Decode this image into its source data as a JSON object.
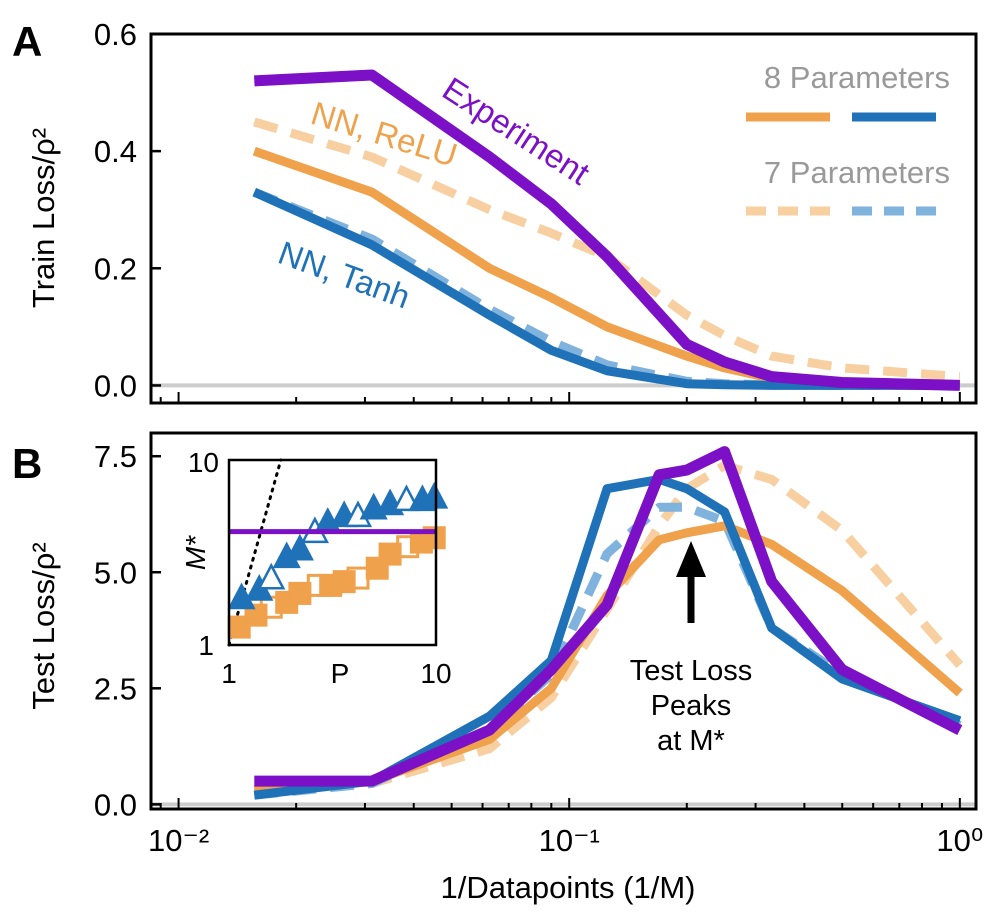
{
  "chart_data": [
    {
      "panel": "A",
      "type": "line",
      "ylabel": "Train Loss/ρ²",
      "xscale": "log",
      "xlim": [
        0.0085,
        1.1
      ],
      "ylim": [
        -0.03,
        0.6
      ],
      "yticks": [
        "0.0",
        "0.2",
        "0.4",
        "0.6"
      ],
      "x": [
        0.015625,
        0.03125,
        0.0625,
        0.09,
        0.125,
        0.2,
        0.25,
        0.33,
        0.5,
        1.0
      ],
      "series": [
        {
          "name": "Experiment",
          "color": "#7B10C6",
          "style": "solid",
          "values": [
            0.52,
            0.53,
            0.39,
            0.31,
            0.22,
            0.07,
            0.04,
            0.015,
            0.005,
            0.0
          ]
        },
        {
          "name": "NN, ReLU 8 Parameters",
          "color": "#F0A14B",
          "style": "solid",
          "values": [
            0.4,
            0.33,
            0.2,
            0.15,
            0.1,
            0.05,
            0.03,
            0.012,
            0.005,
            0.0
          ]
        },
        {
          "name": "NN, ReLU 7 Parameters",
          "color": "#F8CFA0",
          "style": "dashed",
          "values": [
            0.45,
            0.39,
            0.3,
            0.26,
            0.22,
            0.12,
            0.085,
            0.05,
            0.03,
            0.015
          ]
        },
        {
          "name": "NN, Tanh 8 Parameters",
          "color": "#1F72B8",
          "style": "solid",
          "values": [
            0.33,
            0.24,
            0.12,
            0.06,
            0.025,
            0.003,
            0.001,
            0.0,
            0.0,
            0.0
          ]
        },
        {
          "name": "NN, Tanh 7 Parameters",
          "color": "#7FB2DC",
          "style": "dashed",
          "values": [
            0.33,
            0.25,
            0.13,
            0.075,
            0.035,
            0.007,
            0.003,
            0.001,
            0.0,
            0.0
          ]
        }
      ],
      "curve_labels": {
        "experiment": "Experiment",
        "relu": "NN, ReLU",
        "tanh": "NN, Tanh"
      },
      "legend": {
        "title_8": "8 Parameters",
        "title_7": "7 Parameters",
        "placement": "top-right"
      }
    },
    {
      "panel": "B",
      "type": "line",
      "xlabel": "1/Datapoints (1/M)",
      "ylabel": "Test Loss/ρ²",
      "xscale": "log",
      "xlim": [
        0.0085,
        1.1
      ],
      "ylim": [
        -0.1,
        8.0
      ],
      "yticks": [
        "0.0",
        "2.5",
        "5.0",
        "7.5"
      ],
      "xticks": [
        "10⁻²",
        "10⁻¹",
        "10⁰"
      ],
      "x": [
        0.015625,
        0.03125,
        0.0625,
        0.09,
        0.125,
        0.17,
        0.2,
        0.25,
        0.33,
        0.5,
        1.0
      ],
      "series": [
        {
          "name": "Experiment",
          "color": "#7B10C6",
          "style": "solid",
          "values": [
            0.5,
            0.5,
            1.6,
            2.9,
            4.3,
            7.1,
            7.2,
            7.6,
            4.8,
            2.9,
            1.6
          ]
        },
        {
          "name": "NN, ReLU 8 Parameters",
          "color": "#F0A14B",
          "style": "solid",
          "values": [
            0.3,
            0.5,
            1.4,
            2.5,
            4.5,
            5.7,
            5.85,
            6.0,
            5.6,
            4.6,
            2.4
          ]
        },
        {
          "name": "NN, ReLU 7 Parameters",
          "color": "#F8CFA0",
          "style": "dashed",
          "values": [
            0.25,
            0.45,
            1.2,
            2.3,
            4.2,
            6.0,
            6.8,
            7.3,
            7.0,
            5.9,
            3.0
          ]
        },
        {
          "name": "NN, Tanh 8 Parameters",
          "color": "#1F72B8",
          "style": "solid",
          "values": [
            0.2,
            0.5,
            1.9,
            3.1,
            6.8,
            7.0,
            6.8,
            6.3,
            3.8,
            2.7,
            1.8
          ]
        },
        {
          "name": "NN, Tanh 7 Parameters",
          "color": "#7FB2DC",
          "style": "dashed",
          "values": [
            0.2,
            0.45,
            1.6,
            2.8,
            5.4,
            6.4,
            6.4,
            6.1,
            3.8,
            2.8,
            1.7
          ]
        }
      ],
      "annotation": {
        "line1": "Test Loss",
        "line2": "Peaks",
        "line3": "at M*"
      },
      "inset": {
        "type": "scatter",
        "xscale": "log",
        "yscale": "log",
        "xlim": [
          1,
          10
        ],
        "ylim": [
          1,
          10
        ],
        "xlabel": "P",
        "ylabel": "M*",
        "xticks": [
          "1",
          "10"
        ],
        "yticks": [
          "1",
          "10"
        ],
        "experiment_level": 4.1,
        "triangles": {
          "color": "#1F72B8",
          "points": [
            [
              1.15,
              1.8
            ],
            [
              1.4,
              2.0
            ],
            [
              1.6,
              2.3
            ],
            [
              1.9,
              3.0
            ],
            [
              2.2,
              3.3
            ],
            [
              2.6,
              4.1
            ],
            [
              3.0,
              4.6
            ],
            [
              3.6,
              5.0
            ],
            [
              4.2,
              5.0
            ],
            [
              5.0,
              5.5
            ],
            [
              6.0,
              5.8
            ],
            [
              7.2,
              6.1
            ],
            [
              8.6,
              6.1
            ],
            [
              9.8,
              6.3
            ]
          ]
        },
        "squares": {
          "color": "#F0A14B",
          "points": [
            [
              1.12,
              1.25
            ],
            [
              1.35,
              1.45
            ],
            [
              1.6,
              1.6
            ],
            [
              1.9,
              1.7
            ],
            [
              2.2,
              1.9
            ],
            [
              2.7,
              2.1
            ],
            [
              3.1,
              2.1
            ],
            [
              3.6,
              2.2
            ],
            [
              4.2,
              2.3
            ],
            [
              5.2,
              2.6
            ],
            [
              6.0,
              3.1
            ],
            [
              7.3,
              3.4
            ],
            [
              8.5,
              3.6
            ],
            [
              9.8,
              3.8
            ]
          ]
        },
        "diagonal": "dotted"
      }
    }
  ]
}
